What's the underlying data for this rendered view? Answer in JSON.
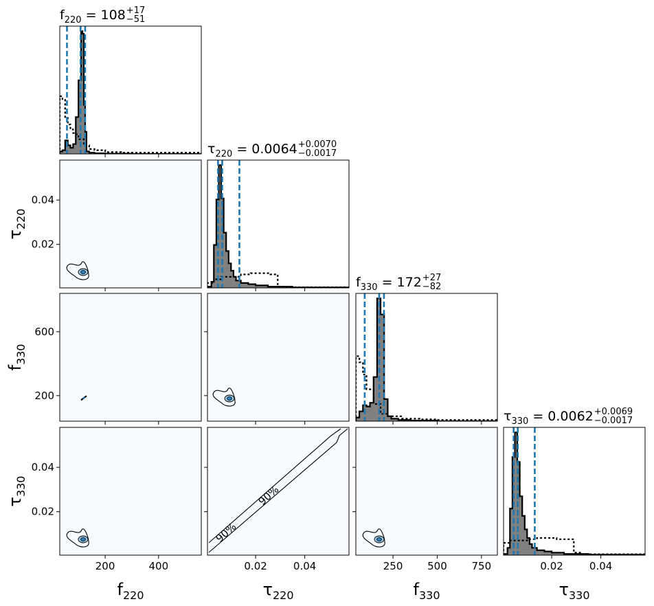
{
  "chart_data": {
    "type": "corner",
    "parameters": [
      {
        "key": "f220",
        "symbol": "f",
        "sub": "220",
        "lim": [
          30,
          560
        ],
        "ticks": [
          200,
          400
        ],
        "title": {
          "value": "108",
          "upper": "+17",
          "lower": "−51"
        }
      },
      {
        "key": "tau220",
        "symbol": "τ",
        "sub": "220",
        "lim": [
          0.0004,
          0.058
        ],
        "ticks": [
          0.02,
          0.04
        ],
        "title": {
          "value": "0.0064",
          "upper": "+0.0070",
          "lower": "−0.0017"
        }
      },
      {
        "key": "f330",
        "symbol": "f",
        "sub": "330",
        "lim": [
          40,
          840
        ],
        "ticks": [
          250,
          500,
          750
        ],
        "title": {
          "value": "172",
          "upper": "+27",
          "lower": "−82"
        }
      },
      {
        "key": "tau330",
        "symbol": "τ",
        "sub": "330",
        "lim": [
          0.0004,
          0.058
        ],
        "ticks": [
          0.02,
          0.04
        ],
        "title": {
          "value": "0.0062",
          "upper": "+0.0069",
          "lower": "−0.0017"
        }
      }
    ],
    "y_tick_labels": {
      "tau220": [
        "0.02",
        "0.04"
      ],
      "f330": [
        "200",
        "600"
      ],
      "tau330": [
        "0.02",
        "0.04"
      ]
    },
    "y_ticks": {
      "tau220": [
        0.02,
        0.04
      ],
      "f330": [
        200,
        600
      ],
      "tau330": [
        0.02,
        0.04
      ]
    },
    "x_tick_labels": {
      "f220": [
        "200",
        "400"
      ],
      "tau220": [
        "0.02",
        "0.04"
      ],
      "f330": [
        "250",
        "500",
        "750"
      ],
      "tau330": [
        "0.02",
        "0.04"
      ]
    },
    "quantile_lines": {
      "f220": [
        57,
        108,
        125
      ],
      "tau220": [
        0.0047,
        0.0064,
        0.0134
      ],
      "f330": [
        90,
        172,
        199
      ],
      "tau330": [
        0.0045,
        0.0062,
        0.0131
      ]
    },
    "posterior_hist": {
      "f220": {
        "edges": [
          30,
          40,
          50,
          60,
          70,
          80,
          90,
          100,
          110,
          115,
          120,
          125,
          130,
          140,
          160,
          200,
          300,
          560
        ],
        "heights": [
          0.02,
          0.03,
          0.11,
          0.07,
          0.05,
          0.08,
          0.3,
          0.6,
          1.0,
          0.98,
          0.4,
          0.18,
          0.02,
          0.01,
          0.005,
          0.002,
          0.0
        ]
      },
      "tau220": {
        "edges": [
          0.0004,
          0.002,
          0.003,
          0.004,
          0.005,
          0.006,
          0.007,
          0.008,
          0.009,
          0.01,
          0.011,
          0.012,
          0.014,
          0.017,
          0.02,
          0.025,
          0.035,
          0.058
        ],
        "heights": [
          0.01,
          0.05,
          0.35,
          0.72,
          1.0,
          0.73,
          0.45,
          0.3,
          0.2,
          0.14,
          0.09,
          0.06,
          0.04,
          0.03,
          0.02,
          0.01,
          0.004
        ]
      },
      "f330": {
        "edges": [
          40,
          60,
          80,
          100,
          120,
          140,
          160,
          180,
          200,
          220,
          240,
          280,
          350,
          500,
          840
        ],
        "heights": [
          0.03,
          0.08,
          0.13,
          0.12,
          0.15,
          0.36,
          1.0,
          0.87,
          0.18,
          0.04,
          0.02,
          0.01,
          0.005,
          0.0
        ]
      },
      "tau330": {
        "edges": [
          0.0004,
          0.002,
          0.003,
          0.004,
          0.005,
          0.006,
          0.007,
          0.008,
          0.009,
          0.01,
          0.011,
          0.012,
          0.014,
          0.017,
          0.02,
          0.025,
          0.035,
          0.058
        ],
        "heights": [
          0.01,
          0.06,
          0.38,
          0.8,
          1.0,
          0.76,
          0.48,
          0.32,
          0.21,
          0.14,
          0.09,
          0.06,
          0.04,
          0.03,
          0.02,
          0.01,
          0.004
        ]
      }
    },
    "prior_hist": {
      "f220": {
        "edges": [
          30,
          40,
          50,
          60,
          70,
          80,
          90,
          100,
          120,
          140,
          160,
          200,
          260,
          560
        ],
        "heights": [
          0.47,
          0.44,
          0.3,
          0.24,
          0.2,
          0.17,
          0.16,
          0.12,
          0.07,
          0.04,
          0.03,
          0.015,
          0.01
        ]
      },
      "tau220": {
        "edges": [
          0.0004,
          0.003,
          0.006,
          0.01,
          0.014,
          0.018,
          0.022,
          0.026,
          0.029,
          0.032,
          0.058
        ],
        "heights": [
          0.04,
          0.07,
          0.09,
          0.09,
          0.11,
          0.12,
          0.12,
          0.11,
          0.01,
          0.005
        ]
      },
      "f330": {
        "edges": [
          40,
          60,
          80,
          100,
          140,
          180,
          220,
          300,
          400,
          500,
          840
        ],
        "heights": [
          0.53,
          0.48,
          0.38,
          0.26,
          0.14,
          0.06,
          0.04,
          0.02,
          0.015,
          0.01
        ]
      },
      "tau330": {
        "edges": [
          0.0004,
          0.003,
          0.006,
          0.01,
          0.014,
          0.018,
          0.022,
          0.026,
          0.029,
          0.032,
          0.058
        ],
        "heights": [
          0.1,
          0.12,
          0.12,
          0.13,
          0.14,
          0.14,
          0.13,
          0.13,
          0.02,
          0.008
        ]
      }
    },
    "contour_label": "90%",
    "colors": {
      "hist_fill": "#808080",
      "quantile_line": "#1f77b4",
      "panel_bg": "#f7fbff",
      "contour_inner": "#2f7ebc",
      "contour_mid": "#9ecae1"
    }
  }
}
